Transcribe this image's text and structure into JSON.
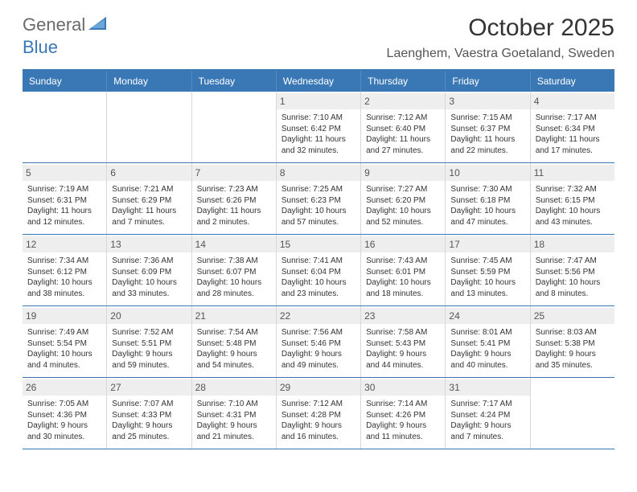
{
  "logo": {
    "general": "General",
    "blue": "Blue"
  },
  "title": "October 2025",
  "location": "Laenghem, Vaestra Goetaland, Sweden",
  "colors": {
    "accent": "#3a78b5",
    "header_text": "#ffffff",
    "daynum_bg": "#eeeeee",
    "cell_border": "#d8d8d8",
    "text": "#333333"
  },
  "day_names": [
    "Sunday",
    "Monday",
    "Tuesday",
    "Wednesday",
    "Thursday",
    "Friday",
    "Saturday"
  ],
  "weeks": [
    [
      {
        "n": "",
        "sun": "",
        "set": "",
        "d1": "",
        "d2": ""
      },
      {
        "n": "",
        "sun": "",
        "set": "",
        "d1": "",
        "d2": ""
      },
      {
        "n": "",
        "sun": "",
        "set": "",
        "d1": "",
        "d2": ""
      },
      {
        "n": "1",
        "sun": "Sunrise: 7:10 AM",
        "set": "Sunset: 6:42 PM",
        "d1": "Daylight: 11 hours",
        "d2": "and 32 minutes."
      },
      {
        "n": "2",
        "sun": "Sunrise: 7:12 AM",
        "set": "Sunset: 6:40 PM",
        "d1": "Daylight: 11 hours",
        "d2": "and 27 minutes."
      },
      {
        "n": "3",
        "sun": "Sunrise: 7:15 AM",
        "set": "Sunset: 6:37 PM",
        "d1": "Daylight: 11 hours",
        "d2": "and 22 minutes."
      },
      {
        "n": "4",
        "sun": "Sunrise: 7:17 AM",
        "set": "Sunset: 6:34 PM",
        "d1": "Daylight: 11 hours",
        "d2": "and 17 minutes."
      }
    ],
    [
      {
        "n": "5",
        "sun": "Sunrise: 7:19 AM",
        "set": "Sunset: 6:31 PM",
        "d1": "Daylight: 11 hours",
        "d2": "and 12 minutes."
      },
      {
        "n": "6",
        "sun": "Sunrise: 7:21 AM",
        "set": "Sunset: 6:29 PM",
        "d1": "Daylight: 11 hours",
        "d2": "and 7 minutes."
      },
      {
        "n": "7",
        "sun": "Sunrise: 7:23 AM",
        "set": "Sunset: 6:26 PM",
        "d1": "Daylight: 11 hours",
        "d2": "and 2 minutes."
      },
      {
        "n": "8",
        "sun": "Sunrise: 7:25 AM",
        "set": "Sunset: 6:23 PM",
        "d1": "Daylight: 10 hours",
        "d2": "and 57 minutes."
      },
      {
        "n": "9",
        "sun": "Sunrise: 7:27 AM",
        "set": "Sunset: 6:20 PM",
        "d1": "Daylight: 10 hours",
        "d2": "and 52 minutes."
      },
      {
        "n": "10",
        "sun": "Sunrise: 7:30 AM",
        "set": "Sunset: 6:18 PM",
        "d1": "Daylight: 10 hours",
        "d2": "and 47 minutes."
      },
      {
        "n": "11",
        "sun": "Sunrise: 7:32 AM",
        "set": "Sunset: 6:15 PM",
        "d1": "Daylight: 10 hours",
        "d2": "and 43 minutes."
      }
    ],
    [
      {
        "n": "12",
        "sun": "Sunrise: 7:34 AM",
        "set": "Sunset: 6:12 PM",
        "d1": "Daylight: 10 hours",
        "d2": "and 38 minutes."
      },
      {
        "n": "13",
        "sun": "Sunrise: 7:36 AM",
        "set": "Sunset: 6:09 PM",
        "d1": "Daylight: 10 hours",
        "d2": "and 33 minutes."
      },
      {
        "n": "14",
        "sun": "Sunrise: 7:38 AM",
        "set": "Sunset: 6:07 PM",
        "d1": "Daylight: 10 hours",
        "d2": "and 28 minutes."
      },
      {
        "n": "15",
        "sun": "Sunrise: 7:41 AM",
        "set": "Sunset: 6:04 PM",
        "d1": "Daylight: 10 hours",
        "d2": "and 23 minutes."
      },
      {
        "n": "16",
        "sun": "Sunrise: 7:43 AM",
        "set": "Sunset: 6:01 PM",
        "d1": "Daylight: 10 hours",
        "d2": "and 18 minutes."
      },
      {
        "n": "17",
        "sun": "Sunrise: 7:45 AM",
        "set": "Sunset: 5:59 PM",
        "d1": "Daylight: 10 hours",
        "d2": "and 13 minutes."
      },
      {
        "n": "18",
        "sun": "Sunrise: 7:47 AM",
        "set": "Sunset: 5:56 PM",
        "d1": "Daylight: 10 hours",
        "d2": "and 8 minutes."
      }
    ],
    [
      {
        "n": "19",
        "sun": "Sunrise: 7:49 AM",
        "set": "Sunset: 5:54 PM",
        "d1": "Daylight: 10 hours",
        "d2": "and 4 minutes."
      },
      {
        "n": "20",
        "sun": "Sunrise: 7:52 AM",
        "set": "Sunset: 5:51 PM",
        "d1": "Daylight: 9 hours",
        "d2": "and 59 minutes."
      },
      {
        "n": "21",
        "sun": "Sunrise: 7:54 AM",
        "set": "Sunset: 5:48 PM",
        "d1": "Daylight: 9 hours",
        "d2": "and 54 minutes."
      },
      {
        "n": "22",
        "sun": "Sunrise: 7:56 AM",
        "set": "Sunset: 5:46 PM",
        "d1": "Daylight: 9 hours",
        "d2": "and 49 minutes."
      },
      {
        "n": "23",
        "sun": "Sunrise: 7:58 AM",
        "set": "Sunset: 5:43 PM",
        "d1": "Daylight: 9 hours",
        "d2": "and 44 minutes."
      },
      {
        "n": "24",
        "sun": "Sunrise: 8:01 AM",
        "set": "Sunset: 5:41 PM",
        "d1": "Daylight: 9 hours",
        "d2": "and 40 minutes."
      },
      {
        "n": "25",
        "sun": "Sunrise: 8:03 AM",
        "set": "Sunset: 5:38 PM",
        "d1": "Daylight: 9 hours",
        "d2": "and 35 minutes."
      }
    ],
    [
      {
        "n": "26",
        "sun": "Sunrise: 7:05 AM",
        "set": "Sunset: 4:36 PM",
        "d1": "Daylight: 9 hours",
        "d2": "and 30 minutes."
      },
      {
        "n": "27",
        "sun": "Sunrise: 7:07 AM",
        "set": "Sunset: 4:33 PM",
        "d1": "Daylight: 9 hours",
        "d2": "and 25 minutes."
      },
      {
        "n": "28",
        "sun": "Sunrise: 7:10 AM",
        "set": "Sunset: 4:31 PM",
        "d1": "Daylight: 9 hours",
        "d2": "and 21 minutes."
      },
      {
        "n": "29",
        "sun": "Sunrise: 7:12 AM",
        "set": "Sunset: 4:28 PM",
        "d1": "Daylight: 9 hours",
        "d2": "and 16 minutes."
      },
      {
        "n": "30",
        "sun": "Sunrise: 7:14 AM",
        "set": "Sunset: 4:26 PM",
        "d1": "Daylight: 9 hours",
        "d2": "and 11 minutes."
      },
      {
        "n": "31",
        "sun": "Sunrise: 7:17 AM",
        "set": "Sunset: 4:24 PM",
        "d1": "Daylight: 9 hours",
        "d2": "and 7 minutes."
      },
      {
        "n": "",
        "sun": "",
        "set": "",
        "d1": "",
        "d2": ""
      }
    ]
  ]
}
